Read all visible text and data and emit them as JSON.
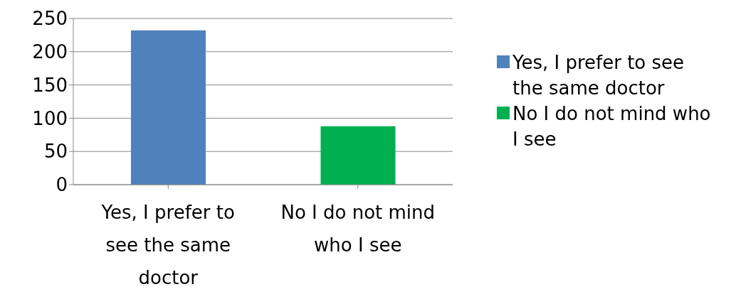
{
  "chart_data": {
    "type": "bar",
    "categories": [
      "Yes, I prefer to see the same doctor",
      "No I do not mind who I see"
    ],
    "series": [
      {
        "name": "Yes, I prefer to see the same doctor",
        "color": "#4f81bd",
        "values": [
          232,
          null
        ]
      },
      {
        "name": "No I do not mind who I see",
        "color": "#00b050",
        "values": [
          null,
          88
        ]
      }
    ],
    "ylim": [
      0,
      250
    ],
    "yticks": [
      0,
      50,
      100,
      150,
      200,
      250
    ],
    "grid": "y",
    "legend": "right"
  }
}
